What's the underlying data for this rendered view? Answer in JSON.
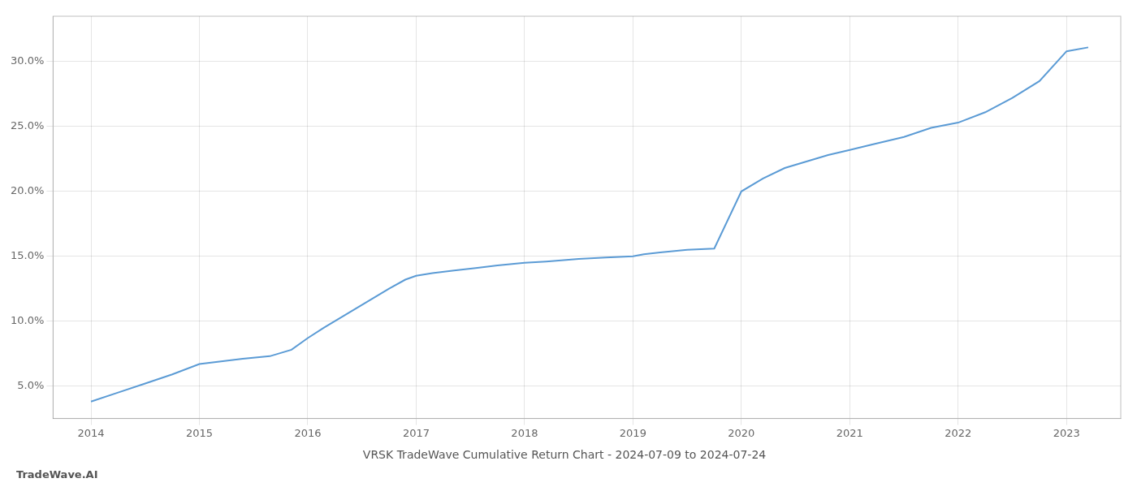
{
  "chart_data": {
    "type": "line",
    "title": "VRSK TradeWave Cumulative Return Chart - 2024-07-09 to 2024-07-24",
    "annotations": [
      "TradeWave.AI"
    ],
    "color": "#5b9bd5",
    "grid": true,
    "x": [
      2014.0,
      2014.25,
      2014.5,
      2014.75,
      2015.0,
      2015.2,
      2015.4,
      2015.65,
      2015.85,
      2016.0,
      2016.15,
      2016.35,
      2016.55,
      2016.75,
      2016.9,
      2017.0,
      2017.15,
      2017.35,
      2017.55,
      2017.75,
      2018.0,
      2018.2,
      2018.5,
      2018.75,
      2019.0,
      2019.1,
      2019.25,
      2019.5,
      2019.75,
      2020.0,
      2020.2,
      2020.4,
      2020.6,
      2020.8,
      2021.0,
      2021.2,
      2021.5,
      2021.75,
      2022.0,
      2022.25,
      2022.5,
      2022.75,
      2023.0,
      2023.2
    ],
    "values": [
      3.8,
      4.5,
      5.2,
      5.9,
      6.7,
      6.9,
      7.1,
      7.3,
      7.8,
      8.7,
      9.5,
      10.5,
      11.5,
      12.5,
      13.2,
      13.5,
      13.7,
      13.9,
      14.1,
      14.3,
      14.5,
      14.6,
      14.8,
      14.9,
      15.0,
      15.15,
      15.3,
      15.5,
      15.6,
      20.0,
      21.0,
      21.8,
      22.3,
      22.8,
      23.2,
      23.6,
      24.2,
      24.9,
      25.3,
      26.1,
      27.2,
      28.5,
      30.8,
      31.1
    ],
    "xlim": [
      2013.65,
      2023.5
    ],
    "ylim": [
      2.5,
      33.5
    ],
    "xticks": [
      2014,
      2015,
      2016,
      2017,
      2018,
      2019,
      2020,
      2021,
      2022,
      2023
    ],
    "yticks": [
      {
        "value": 5.0,
        "label": "5.0%"
      },
      {
        "value": 10.0,
        "label": "10.0%"
      },
      {
        "value": 15.0,
        "label": "15.0%"
      },
      {
        "value": 20.0,
        "label": "20.0%"
      },
      {
        "value": 25.0,
        "label": "25.0%"
      },
      {
        "value": 30.0,
        "label": "30.0%"
      }
    ]
  }
}
